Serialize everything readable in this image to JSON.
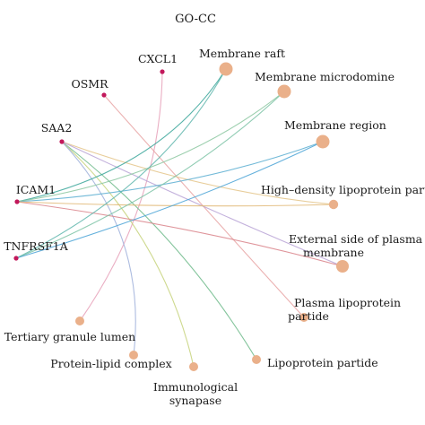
{
  "title": "GO-CC",
  "colors": {
    "gene_node": "#c2185b",
    "term_node": "#eab08a"
  },
  "genes": [
    {
      "id": "CXCL1",
      "label": "CXCL1"
    },
    {
      "id": "OSMR",
      "label": "OSMR"
    },
    {
      "id": "SAA2",
      "label": "SAA2"
    },
    {
      "id": "ICAM1",
      "label": "ICAM1"
    },
    {
      "id": "TNFRSF1A",
      "label": "TNFRSF1A"
    }
  ],
  "terms": [
    {
      "id": "membrane-raft",
      "lines": [
        "Membrane raft"
      ]
    },
    {
      "id": "membrane-microdomine",
      "lines": [
        "Membrane microdomine"
      ]
    },
    {
      "id": "membrane-region",
      "lines": [
        "Membrane region"
      ]
    },
    {
      "id": "hdl-particle",
      "lines": [
        "High–density lipoprotein particle"
      ]
    },
    {
      "id": "external-side-plasma-membrane",
      "lines": [
        "External side of plasma",
        "membrane"
      ]
    },
    {
      "id": "plasma-lipoprotein-partide",
      "lines": [
        "Plasma lipoprotein",
        "partide"
      ]
    },
    {
      "id": "lipoprotein-partide",
      "lines": [
        "Lipoprotein partide"
      ]
    },
    {
      "id": "immunological-synapase",
      "lines": [
        "Immunological",
        "synapase"
      ]
    },
    {
      "id": "protein-lipid-complex",
      "lines": [
        "Protein-lipid complex"
      ]
    },
    {
      "id": "tertiary-granule-lumen",
      "lines": [
        "Tertiary granule lumen"
      ]
    }
  ],
  "edges": [
    {
      "gene": "CXCL1",
      "term": "tertiary-granule-lumen",
      "color": "#e6a0b8"
    },
    {
      "gene": "OSMR",
      "term": "plasma-lipoprotein-partide",
      "color": "#e7a3a3"
    },
    {
      "gene": "SAA2",
      "term": "hdl-particle",
      "color": "#e4c488"
    },
    {
      "gene": "SAA2",
      "term": "lipoprotein-partide",
      "color": "#6dba8a"
    },
    {
      "gene": "SAA2",
      "term": "external-side-plasma-membrane",
      "color": "#b9a3d6"
    },
    {
      "gene": "SAA2",
      "term": "immunological-synapase",
      "color": "#c6d27a"
    },
    {
      "gene": "SAA2",
      "term": "protein-lipid-complex",
      "color": "#9fb0da"
    },
    {
      "gene": "ICAM1",
      "term": "membrane-raft",
      "color": "#3aa69a"
    },
    {
      "gene": "ICAM1",
      "term": "membrane-microdomine",
      "color": "#8bc7a0"
    },
    {
      "gene": "ICAM1",
      "term": "membrane-region",
      "color": "#5aaed1"
    },
    {
      "gene": "ICAM1",
      "term": "external-side-plasma-membrane",
      "color": "#d9828a"
    },
    {
      "gene": "ICAM1",
      "term": "hdl-particle",
      "color": "#e0b774"
    },
    {
      "gene": "TNFRSF1A",
      "term": "membrane-raft",
      "color": "#5fb6ad"
    },
    {
      "gene": "TNFRSF1A",
      "term": "membrane-microdomine",
      "color": "#7cc3a6"
    },
    {
      "gene": "TNFRSF1A",
      "term": "membrane-region",
      "color": "#4aa3d6"
    }
  ]
}
